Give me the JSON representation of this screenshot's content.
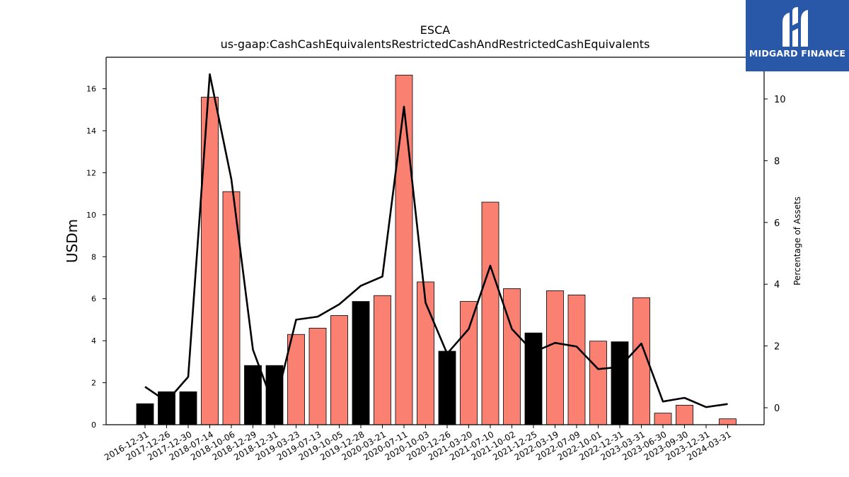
{
  "chart_data": {
    "type": "bar",
    "title": "ESCA",
    "subtitle": "us-gaap:CashCashEquivalentsRestrictedCashAndRestrictedCashEquivalents",
    "ylabel": "USDm",
    "y2label": "Percentage of Assets",
    "ylim": [
      0,
      17.5
    ],
    "y2lim": [
      -0.55,
      11.35
    ],
    "yticks": [
      0,
      2,
      4,
      6,
      8,
      10,
      12,
      14,
      16
    ],
    "y2ticks": [
      0,
      2,
      4,
      6,
      8,
      10
    ],
    "grid": false,
    "categories": [
      "2016-12-31",
      "2017-12-26",
      "2017-12-30",
      "2018-07-14",
      "2018-10-06",
      "2018-12-29",
      "2018-12-31",
      "2019-03-23",
      "2019-07-13",
      "2019-10-05",
      "2019-12-28",
      "2020-03-21",
      "2020-07-11",
      "2020-10-03",
      "2020-12-26",
      "2021-03-20",
      "2021-07-10",
      "2021-10-02",
      "2021-12-25",
      "2022-03-19",
      "2022-07-09",
      "2022-10-01",
      "2022-12-31",
      "2023-03-31",
      "2023-06-30",
      "2023-09-30",
      "2023-12-31",
      "2024-03-31"
    ],
    "series": [
      {
        "kind": "bar",
        "values": [
          1.0,
          1.57,
          1.57,
          15.6,
          11.1,
          2.82,
          2.82,
          4.3,
          4.6,
          5.2,
          5.87,
          6.15,
          16.65,
          6.8,
          3.5,
          5.87,
          10.6,
          6.48,
          4.37,
          6.38,
          6.18,
          3.98,
          3.95,
          6.05,
          0.55,
          0.93,
          0.0,
          0.28
        ],
        "colors": [
          "#000000",
          "#000000",
          "#000000",
          "#fa8072",
          "#fa8072",
          "#000000",
          "#000000",
          "#fa8072",
          "#fa8072",
          "#fa8072",
          "#000000",
          "#fa8072",
          "#fa8072",
          "#fa8072",
          "#000000",
          "#fa8072",
          "#fa8072",
          "#fa8072",
          "#000000",
          "#fa8072",
          "#fa8072",
          "#fa8072",
          "#000000",
          "#fa8072",
          "#fa8072",
          "#fa8072",
          "#fa8072",
          "#fa8072"
        ]
      },
      {
        "kind": "line",
        "axis": "right",
        "color": "#000000",
        "values": [
          0.68,
          0.2,
          1.0,
          10.8,
          7.4,
          1.88,
          0.0,
          2.85,
          2.95,
          3.35,
          3.95,
          4.25,
          9.75,
          3.4,
          1.75,
          2.55,
          4.6,
          2.55,
          1.8,
          2.1,
          1.98,
          1.25,
          1.32,
          2.08,
          0.2,
          0.32,
          0.02,
          0.12
        ]
      }
    ]
  },
  "logo": {
    "text": "MIDGARD FINANCE",
    "icon": "midgard-logo-icon",
    "bg_color": "#2a58a8"
  }
}
